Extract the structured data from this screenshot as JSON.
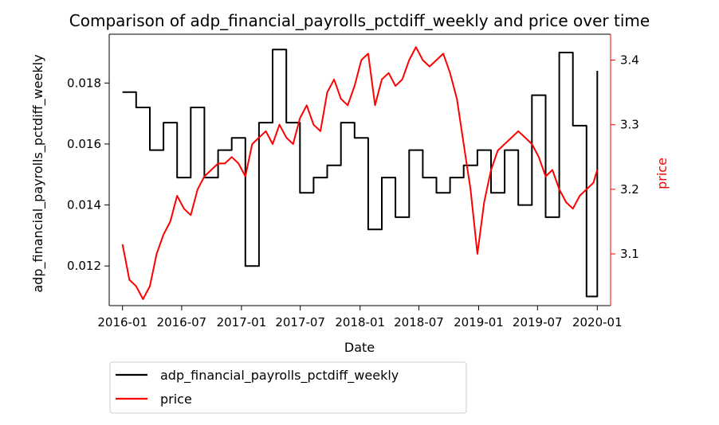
{
  "chart_data": {
    "type": "line",
    "title": "Comparison of adp_financial_payrolls_pctdiff_weekly and price over time",
    "xlabel": "Date",
    "ylabel_left": "adp_financial_payrolls_pctdiff_weekly",
    "ylabel_right": "price",
    "x_ticks": [
      "2016-01",
      "2016-07",
      "2017-01",
      "2017-07",
      "2018-01",
      "2018-07",
      "2019-01",
      "2019-07",
      "2020-01"
    ],
    "y_left_ticks": [
      "0.012",
      "0.014",
      "0.016",
      "0.018"
    ],
    "y_right_ticks": [
      "3.1",
      "3.2",
      "3.3",
      "3.4"
    ],
    "y_left_range": [
      0.0107,
      0.0196
    ],
    "y_right_range": [
      3.02,
      3.44
    ],
    "x_range": [
      "2015-11-21",
      "2020-02-11"
    ],
    "legend_placement": "below-left",
    "grid": false,
    "colors": {
      "adp": "#000000",
      "price": "#ff0000",
      "right_axis": "#ff0000"
    },
    "series": [
      {
        "name": "adp_financial_payrolls_pctdiff_weekly",
        "axis": "left",
        "step": true,
        "color": "#000000",
        "points": [
          [
            "2016-01-01",
            0.0177
          ],
          [
            "2016-02-12",
            0.0172
          ],
          [
            "2016-03-25",
            0.0158
          ],
          [
            "2016-05-06",
            0.0167
          ],
          [
            "2016-06-17",
            0.0149
          ],
          [
            "2016-07-29",
            0.0172
          ],
          [
            "2016-09-09",
            0.0149
          ],
          [
            "2016-10-21",
            0.0158
          ],
          [
            "2016-12-02",
            0.0162
          ],
          [
            "2017-01-13",
            0.012
          ],
          [
            "2017-02-24",
            0.0167
          ],
          [
            "2017-04-07",
            0.0191
          ],
          [
            "2017-05-19",
            0.0167
          ],
          [
            "2017-06-30",
            0.0144
          ],
          [
            "2017-08-11",
            0.0149
          ],
          [
            "2017-09-22",
            0.0153
          ],
          [
            "2017-11-03",
            0.0167
          ],
          [
            "2017-12-15",
            0.0162
          ],
          [
            "2018-01-26",
            0.0132
          ],
          [
            "2018-03-09",
            0.0149
          ],
          [
            "2018-04-20",
            0.0136
          ],
          [
            "2018-06-01",
            0.0158
          ],
          [
            "2018-07-13",
            0.0149
          ],
          [
            "2018-08-24",
            0.0144
          ],
          [
            "2018-10-05",
            0.0149
          ],
          [
            "2018-11-16",
            0.0153
          ],
          [
            "2018-12-28",
            0.0158
          ],
          [
            "2019-02-08",
            0.0144
          ],
          [
            "2019-03-22",
            0.0158
          ],
          [
            "2019-05-03",
            0.014
          ],
          [
            "2019-06-14",
            0.0176
          ],
          [
            "2019-07-26",
            0.0136
          ],
          [
            "2019-09-06",
            0.019
          ],
          [
            "2019-10-18",
            0.0166
          ],
          [
            "2019-11-29",
            0.011
          ],
          [
            "2020-01-01",
            0.0184
          ]
        ]
      },
      {
        "name": "price",
        "axis": "right",
        "step": false,
        "color": "#ff0000",
        "points": [
          [
            "2016-01-01",
            3.115
          ],
          [
            "2016-01-22",
            3.06
          ],
          [
            "2016-02-12",
            3.05
          ],
          [
            "2016-03-04",
            3.03
          ],
          [
            "2016-03-25",
            3.05
          ],
          [
            "2016-04-15",
            3.1
          ],
          [
            "2016-05-06",
            3.13
          ],
          [
            "2016-05-27",
            3.15
          ],
          [
            "2016-06-17",
            3.19
          ],
          [
            "2016-07-08",
            3.17
          ],
          [
            "2016-07-29",
            3.16
          ],
          [
            "2016-08-19",
            3.2
          ],
          [
            "2016-09-09",
            3.22
          ],
          [
            "2016-09-30",
            3.23
          ],
          [
            "2016-10-21",
            3.24
          ],
          [
            "2016-11-11",
            3.24
          ],
          [
            "2016-12-02",
            3.25
          ],
          [
            "2016-12-23",
            3.24
          ],
          [
            "2017-01-13",
            3.22
          ],
          [
            "2017-02-03",
            3.27
          ],
          [
            "2017-02-24",
            3.28
          ],
          [
            "2017-03-17",
            3.29
          ],
          [
            "2017-04-07",
            3.27
          ],
          [
            "2017-04-28",
            3.3
          ],
          [
            "2017-05-19",
            3.28
          ],
          [
            "2017-06-09",
            3.27
          ],
          [
            "2017-06-30",
            3.31
          ],
          [
            "2017-07-21",
            3.33
          ],
          [
            "2017-08-11",
            3.3
          ],
          [
            "2017-09-01",
            3.29
          ],
          [
            "2017-09-22",
            3.35
          ],
          [
            "2017-10-13",
            3.37
          ],
          [
            "2017-11-03",
            3.34
          ],
          [
            "2017-11-24",
            3.33
          ],
          [
            "2017-12-15",
            3.36
          ],
          [
            "2018-01-05",
            3.4
          ],
          [
            "2018-01-26",
            3.41
          ],
          [
            "2018-02-16",
            3.33
          ],
          [
            "2018-03-09",
            3.37
          ],
          [
            "2018-03-30",
            3.38
          ],
          [
            "2018-04-20",
            3.36
          ],
          [
            "2018-05-11",
            3.37
          ],
          [
            "2018-06-01",
            3.4
          ],
          [
            "2018-06-22",
            3.42
          ],
          [
            "2018-07-13",
            3.4
          ],
          [
            "2018-08-03",
            3.39
          ],
          [
            "2018-08-24",
            3.4
          ],
          [
            "2018-09-14",
            3.41
          ],
          [
            "2018-10-05",
            3.38
          ],
          [
            "2018-10-26",
            3.34
          ],
          [
            "2018-11-16",
            3.27
          ],
          [
            "2018-12-07",
            3.2
          ],
          [
            "2018-12-28",
            3.1
          ],
          [
            "2019-01-18",
            3.18
          ],
          [
            "2019-02-08",
            3.23
          ],
          [
            "2019-03-01",
            3.26
          ],
          [
            "2019-03-22",
            3.27
          ],
          [
            "2019-04-12",
            3.28
          ],
          [
            "2019-05-03",
            3.29
          ],
          [
            "2019-05-24",
            3.28
          ],
          [
            "2019-06-14",
            3.27
          ],
          [
            "2019-07-05",
            3.25
          ],
          [
            "2019-07-26",
            3.22
          ],
          [
            "2019-08-16",
            3.23
          ],
          [
            "2019-09-06",
            3.2
          ],
          [
            "2019-09-27",
            3.18
          ],
          [
            "2019-10-18",
            3.17
          ],
          [
            "2019-11-08",
            3.19
          ],
          [
            "2019-11-29",
            3.2
          ],
          [
            "2019-12-20",
            3.21
          ],
          [
            "2020-01-01",
            3.23
          ]
        ]
      }
    ]
  }
}
